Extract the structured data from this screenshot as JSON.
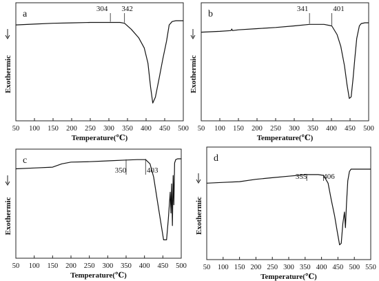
{
  "chart_data": [
    {
      "type": "line",
      "panel_label": "a",
      "xlabel": "Temperature(℃)",
      "ylabel": "Exothermic",
      "xlim": [
        50,
        500
      ],
      "xticks": [
        50,
        100,
        150,
        200,
        250,
        300,
        350,
        400,
        450,
        500
      ],
      "y_direction_arrow": "down",
      "annotations": [
        {
          "text": "304",
          "x": 304
        },
        {
          "text": "342",
          "x": 342
        }
      ],
      "series": [
        {
          "x": [
            50,
            100,
            150,
            200,
            250,
            300,
            330,
            342,
            360,
            380,
            395,
            405,
            412,
            418,
            425,
            435,
            445,
            455,
            462,
            470,
            480,
            500
          ],
          "y": [
            0.05,
            0.04,
            0.03,
            0.025,
            0.02,
            0.02,
            0.02,
            0.03,
            0.1,
            0.2,
            0.32,
            0.5,
            0.78,
            0.97,
            0.9,
            0.68,
            0.45,
            0.24,
            0.05,
            0.01,
            0.0,
            0.0
          ]
        }
      ]
    },
    {
      "type": "line",
      "panel_label": "b",
      "xlabel": "Temperature(℃)",
      "ylabel": "Exothermic",
      "xlim": [
        50,
        500
      ],
      "xticks": [
        50,
        100,
        150,
        200,
        250,
        300,
        350,
        400,
        450,
        500
      ],
      "y_direction_arrow": "down",
      "annotations": [
        {
          "text": "341",
          "x": 341
        },
        {
          "text": "401",
          "x": 401
        }
      ],
      "series": [
        {
          "x": [
            50,
            100,
            130,
            132,
            134,
            150,
            200,
            250,
            300,
            341,
            380,
            401,
            415,
            425,
            435,
            442,
            448,
            453,
            458,
            463,
            468,
            475,
            480,
            490,
            500
          ],
          "y": [
            0.12,
            0.11,
            0.1,
            0.08,
            0.1,
            0.09,
            0.075,
            0.06,
            0.04,
            0.02,
            0.02,
            0.04,
            0.15,
            0.3,
            0.55,
            0.8,
            0.97,
            0.95,
            0.72,
            0.45,
            0.2,
            0.04,
            0.01,
            0.0,
            0.0
          ]
        }
      ]
    },
    {
      "type": "line",
      "panel_label": "c",
      "xlabel": "Temperature(℃)",
      "ylabel": "Exothermic",
      "xlim": [
        50,
        500
      ],
      "xticks": [
        50,
        100,
        150,
        200,
        250,
        300,
        350,
        400,
        450,
        500
      ],
      "y_direction_arrow": "down",
      "annotations": [
        {
          "text": "350",
          "x": 350
        },
        {
          "text": "403",
          "x": 403
        }
      ],
      "series": [
        {
          "x": [
            50,
            100,
            150,
            175,
            200,
            250,
            300,
            350,
            380,
            403,
            415,
            425,
            435,
            445,
            452,
            460,
            465,
            470,
            472,
            474,
            476,
            478,
            480,
            482,
            485,
            490,
            500
          ],
          "y": [
            0.12,
            0.11,
            0.1,
            0.06,
            0.04,
            0.035,
            0.025,
            0.015,
            0.01,
            0.01,
            0.06,
            0.22,
            0.5,
            0.78,
            0.97,
            0.97,
            0.72,
            0.4,
            0.65,
            0.3,
            0.8,
            0.2,
            0.55,
            0.05,
            0.01,
            0.0,
            0.0
          ]
        }
      ]
    },
    {
      "type": "line",
      "panel_label": "d",
      "xlabel": "Temperature(℃)",
      "ylabel": "Exothermic",
      "xlim": [
        50,
        550
      ],
      "xticks": [
        50,
        100,
        150,
        200,
        250,
        300,
        350,
        400,
        450,
        500,
        550
      ],
      "y_direction_arrow": "down",
      "annotations": [
        {
          "text": "355",
          "x": 355
        },
        {
          "text": "406",
          "x": 406
        }
      ],
      "series": [
        {
          "x": [
            50,
            100,
            150,
            200,
            250,
            300,
            355,
            390,
            406,
            420,
            430,
            440,
            448,
            455,
            460,
            465,
            470,
            473,
            476,
            480,
            485,
            490,
            500,
            550
          ],
          "y": [
            0.18,
            0.17,
            0.16,
            0.13,
            0.11,
            0.09,
            0.07,
            0.07,
            0.08,
            0.18,
            0.4,
            0.6,
            0.8,
            0.97,
            0.95,
            0.7,
            0.55,
            0.75,
            0.45,
            0.15,
            0.03,
            0.0,
            0.0,
            0.0
          ]
        }
      ]
    }
  ]
}
